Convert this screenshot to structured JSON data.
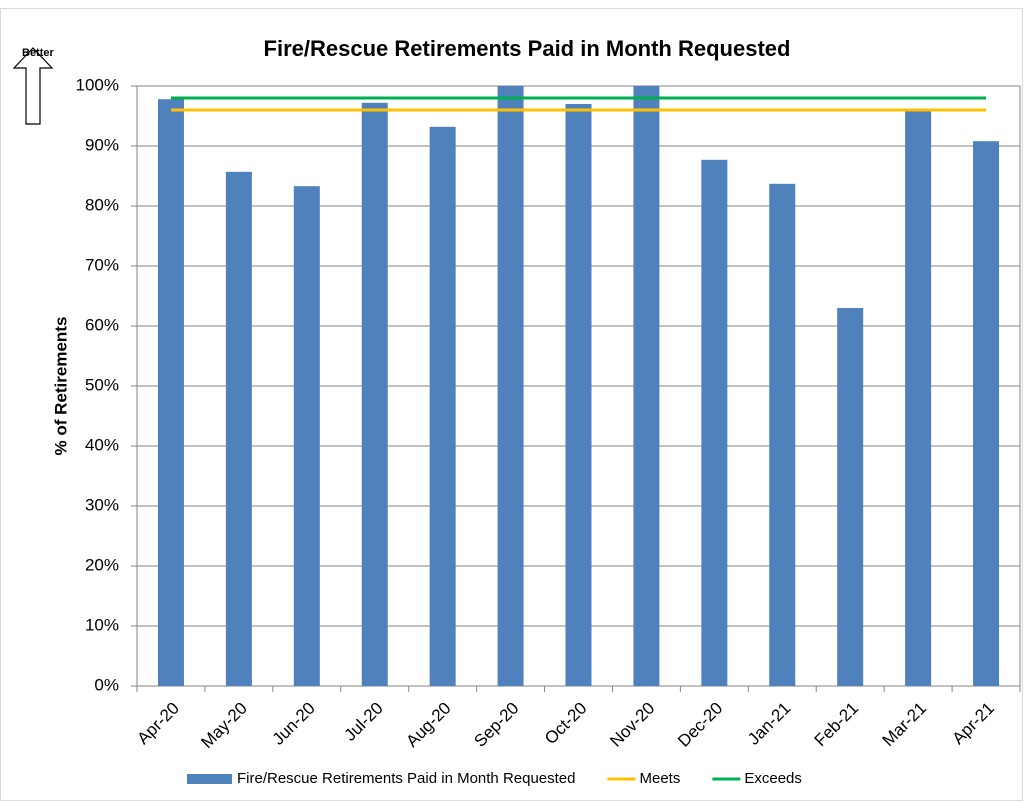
{
  "chart_data": {
    "type": "bar",
    "title": "Fire/Rescue Retirements Paid in Month Requested",
    "y_label": "% of Retirements",
    "annotation": "Better",
    "categories": [
      "Apr-20",
      "May-20",
      "Jun-20",
      "Jul-20",
      "Aug-20",
      "Sep-20",
      "Oct-20",
      "Nov-20",
      "Dec-20",
      "Jan-21",
      "Feb-21",
      "Mar-21",
      "Apr-21"
    ],
    "series": [
      {
        "name": "Fire/Rescue Retirements Paid in Month Requested",
        "type": "bar",
        "color": "#4f81bd",
        "values": [
          97.8,
          85.7,
          83.3,
          97.2,
          93.2,
          100,
          97,
          100,
          87.7,
          83.7,
          63,
          96,
          90.8
        ]
      },
      {
        "name": "Meets",
        "type": "line",
        "color": "#ffc000",
        "values": [
          96,
          96,
          96,
          96,
          96,
          96,
          96,
          96,
          96,
          96,
          96,
          96,
          96
        ]
      },
      {
        "name": "Exceeds",
        "type": "line",
        "color": "#00b050",
        "values": [
          98,
          98,
          98,
          98,
          98,
          98,
          98,
          98,
          98,
          98,
          98,
          98,
          98
        ]
      }
    ],
    "ylim": [
      0,
      100
    ],
    "yticks": [
      {
        "value": 0,
        "label": "0%"
      },
      {
        "value": 10,
        "label": "10%"
      },
      {
        "value": 20,
        "label": "20%"
      },
      {
        "value": 30,
        "label": "30%"
      },
      {
        "value": 40,
        "label": "40%"
      },
      {
        "value": 50,
        "label": "50%"
      },
      {
        "value": 60,
        "label": "60%"
      },
      {
        "value": 70,
        "label": "70%"
      },
      {
        "value": 80,
        "label": "80%"
      },
      {
        "value": 90,
        "label": "90%"
      },
      {
        "value": 100,
        "label": "100%"
      }
    ],
    "grid": true,
    "legend": "bottom"
  }
}
